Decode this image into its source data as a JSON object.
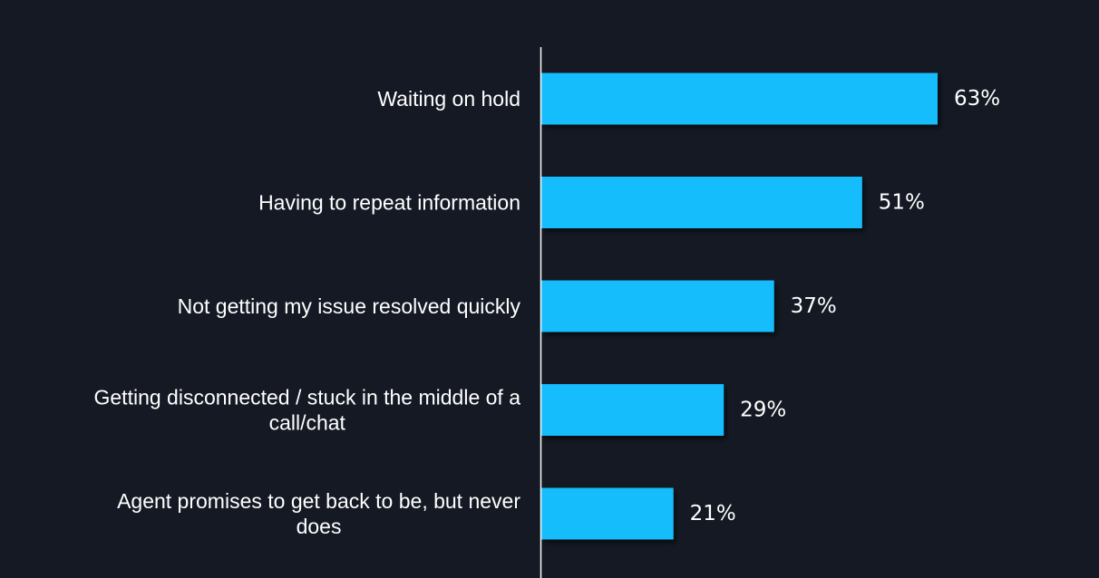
{
  "chart_data": {
    "type": "bar",
    "orientation": "horizontal",
    "categories": [
      [
        "Waiting on hold"
      ],
      [
        "Having to repeat information"
      ],
      [
        "Not getting my issue resolved quickly"
      ],
      [
        "Getting disconnected / stuck in the middle of a",
        "call/chat"
      ],
      [
        "Agent promises to get back to be, but never",
        "does"
      ]
    ],
    "values": [
      63,
      51,
      37,
      29,
      21
    ],
    "value_labels": [
      "63%",
      "51%",
      "37%",
      "29%",
      "21%"
    ],
    "unit": "%",
    "xlim": [
      0,
      100
    ],
    "grid": false,
    "legend": "none",
    "colors": {
      "background": "#141924",
      "bar": "#19bdfd",
      "axis": "#ffffff",
      "text": "#ffffff"
    }
  }
}
